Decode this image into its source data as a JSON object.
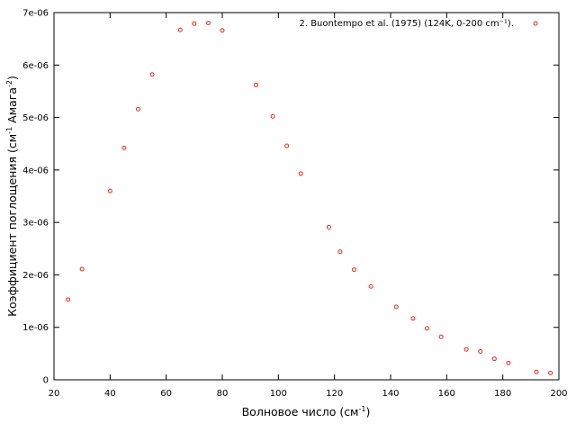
{
  "chart_data": {
    "type": "scatter",
    "title": "",
    "xlabel": {
      "main": "Волновое число (см",
      "sup": "-1",
      "tail": ")"
    },
    "ylabel": {
      "main": "Коэффициент поглощения (см",
      "sup1": "-1",
      "mid": " Амага",
      "sup2": "-2",
      "tail": ")"
    },
    "xlim": [
      20,
      200
    ],
    "ylim": [
      0,
      7e-06
    ],
    "x_ticks": [
      20,
      40,
      60,
      80,
      100,
      120,
      140,
      160,
      180,
      200
    ],
    "x_tick_labels": [
      "20",
      "40",
      "60",
      "80",
      "100",
      "120",
      "140",
      "160",
      "180",
      "200"
    ],
    "y_ticks": [
      0,
      1e-06,
      2e-06,
      3e-06,
      4e-06,
      5e-06,
      6e-06,
      7e-06
    ],
    "y_tick_labels": [
      "0",
      "1e-06",
      "2e-06",
      "3e-06",
      "4e-06",
      "5e-06",
      "6e-06",
      "7e-06"
    ],
    "grid": false,
    "legend_position": "top-right",
    "marker_color": "#e8261a",
    "series": [
      {
        "name": "2. Buontempo et al. (1975)  (124K, 0-200 cm⁻¹).",
        "x": [
          25,
          30,
          40,
          45,
          50,
          55,
          65,
          70,
          75,
          80,
          92,
          98,
          103,
          108,
          118,
          122,
          127,
          133,
          142,
          148,
          153,
          158,
          167,
          172,
          177,
          182,
          192,
          197
        ],
        "y": [
          1.53e-06,
          2.11e-06,
          3.6e-06,
          4.42e-06,
          5.16e-06,
          5.82e-06,
          6.67e-06,
          6.79e-06,
          6.8e-06,
          6.66e-06,
          5.62e-06,
          5.02e-06,
          4.46e-06,
          3.93e-06,
          2.91e-06,
          2.44e-06,
          2.1e-06,
          1.78e-06,
          1.39e-06,
          1.17e-06,
          9.8e-07,
          8.2e-07,
          5.8e-07,
          5.4e-07,
          4e-07,
          3.2e-07,
          1.5e-07,
          1.3e-07
        ]
      }
    ]
  }
}
